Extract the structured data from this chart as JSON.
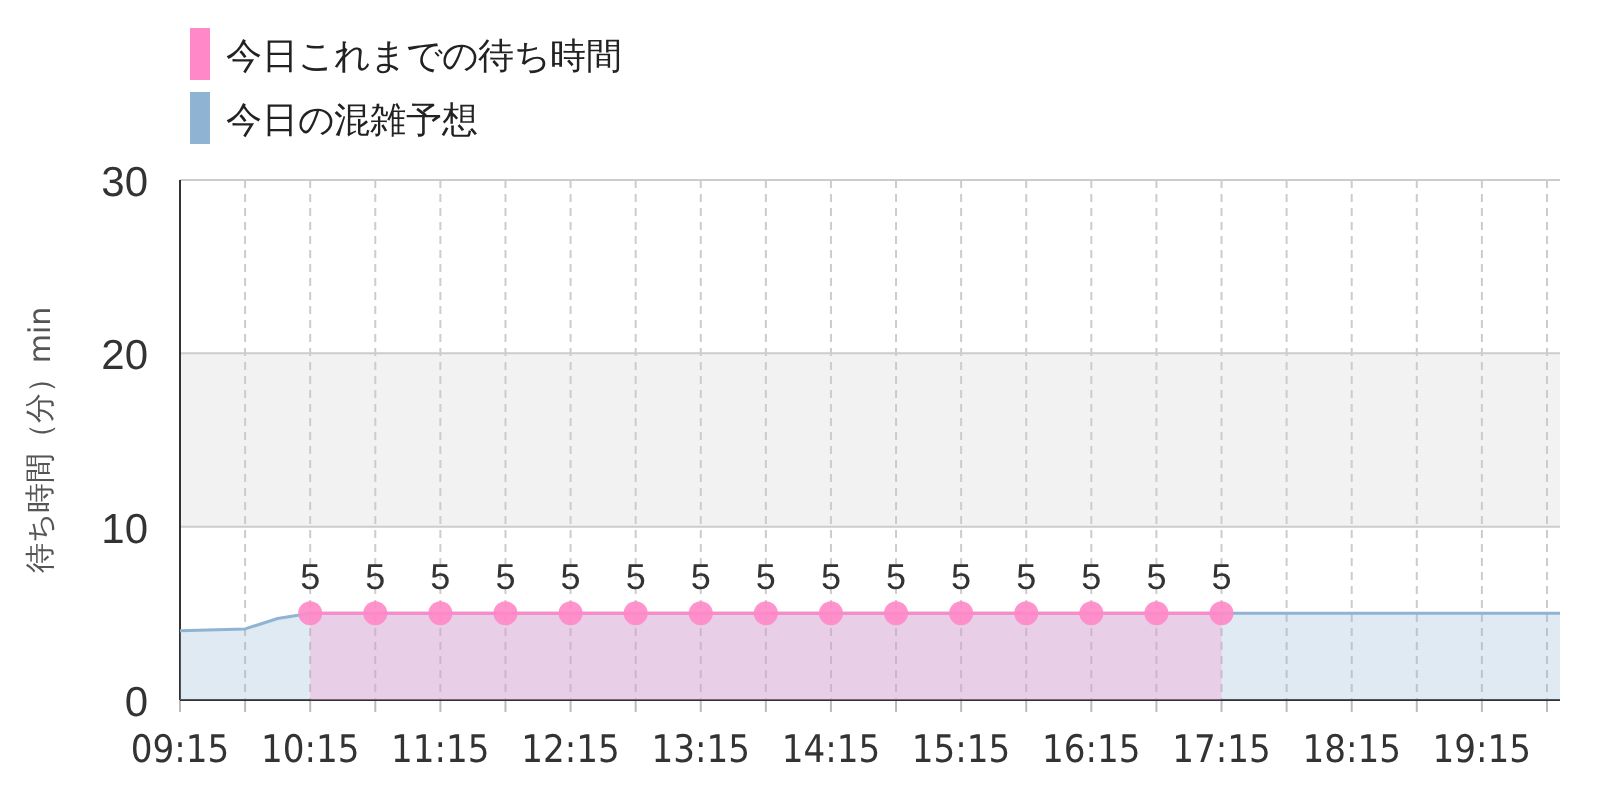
{
  "chart_data": {
    "type": "area",
    "ylabel": "待ち時間（分）min",
    "legend": "top left",
    "grid": true,
    "xlim": [
      9.25,
      19.85
    ],
    "ylim": [
      0,
      30
    ],
    "yticks": [
      0,
      10,
      20,
      30
    ],
    "xticks": [
      {
        "value": 9.25,
        "label": "09:15"
      },
      {
        "value": 9.75,
        "label": null
      },
      {
        "value": 10.25,
        "label": "10:15"
      },
      {
        "value": 10.75,
        "label": null
      },
      {
        "value": 11.25,
        "label": "11:15"
      },
      {
        "value": 11.75,
        "label": null
      },
      {
        "value": 12.25,
        "label": "12:15"
      },
      {
        "value": 12.75,
        "label": null
      },
      {
        "value": 13.25,
        "label": "13:15"
      },
      {
        "value": 13.75,
        "label": null
      },
      {
        "value": 14.25,
        "label": "14:15"
      },
      {
        "value": 14.75,
        "label": null
      },
      {
        "value": 15.25,
        "label": "15:15"
      },
      {
        "value": 15.75,
        "label": null
      },
      {
        "value": 16.25,
        "label": "16:15"
      },
      {
        "value": 16.75,
        "label": null
      },
      {
        "value": 17.25,
        "label": "17:15"
      },
      {
        "value": 17.75,
        "label": null
      },
      {
        "value": 18.25,
        "label": "18:15"
      },
      {
        "value": 18.75,
        "label": null
      },
      {
        "value": 19.25,
        "label": "19:15"
      },
      {
        "value": 19.75,
        "label": null
      }
    ],
    "bands": [
      {
        "axis": "y",
        "from": 10,
        "to": 20,
        "color": "#f2f2f2"
      }
    ],
    "series": [
      {
        "name": "今日の混雑予想",
        "color": "#8fb3d3",
        "marker": "none",
        "x": [
          9.25,
          9.75,
          10.0,
          10.25,
          11.25,
          12.25,
          13.25,
          14.25,
          15.25,
          16.25,
          17.25,
          18.25,
          19.25,
          19.85
        ],
        "values": [
          4,
          4.1,
          4.7,
          5,
          5,
          5,
          5,
          5,
          5,
          5,
          5,
          5,
          5,
          5
        ]
      },
      {
        "name": "今日これまでの待ち時間",
        "color": "#ff88c8",
        "marker": "circle",
        "x": [
          10.25,
          10.75,
          11.25,
          11.75,
          12.25,
          12.75,
          13.25,
          13.75,
          14.25,
          14.75,
          15.25,
          15.75,
          16.25,
          16.75,
          17.25
        ],
        "values": [
          5,
          5,
          5,
          5,
          5,
          5,
          5,
          5,
          5,
          5,
          5,
          5,
          5,
          5,
          5
        ],
        "value_labels": [
          "5",
          "5",
          "5",
          "5",
          "5",
          "5",
          "5",
          "5",
          "5",
          "5",
          "5",
          "5",
          "5",
          "5",
          "5"
        ]
      }
    ]
  }
}
